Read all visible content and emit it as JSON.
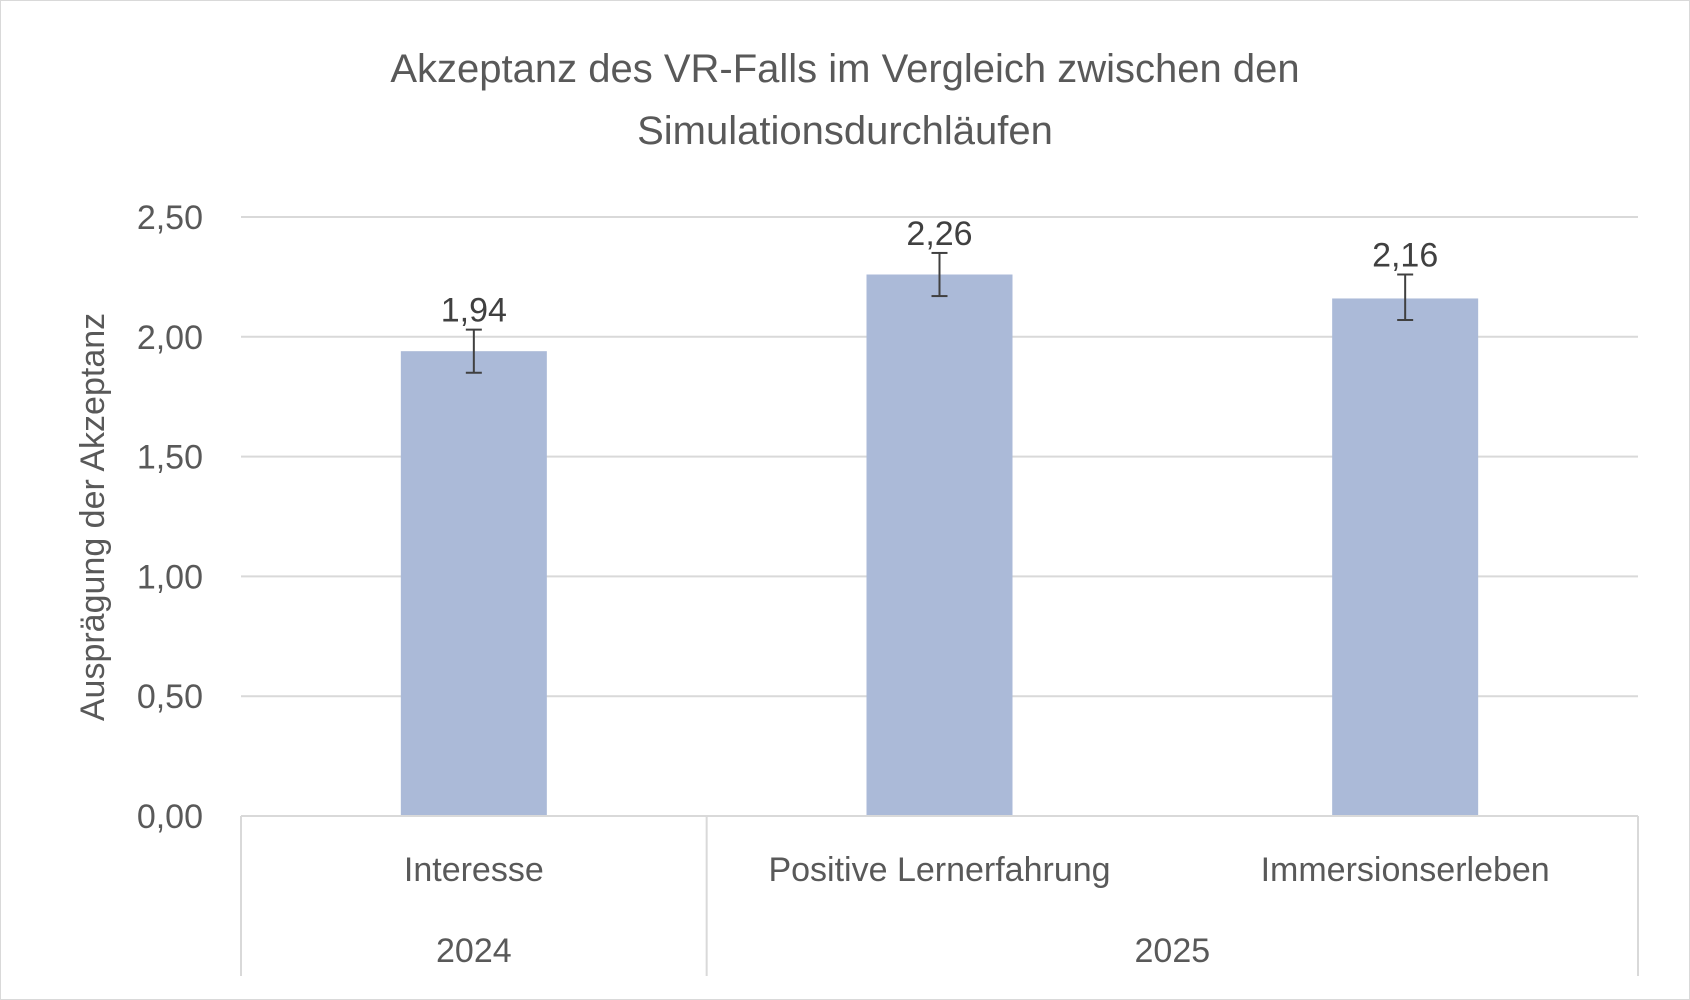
{
  "chart_data": {
    "type": "bar",
    "title_line1": "Akzeptanz des VR-Falls im Vergleich zwischen den",
    "title_line2": "Simulationsdurchläufen",
    "ylabel": "Ausprägung der Akzeptanz",
    "xlabel": "",
    "ylim": [
      0,
      2.5
    ],
    "yticks": [
      {
        "value": 0,
        "label": "0,00"
      },
      {
        "value": 0.5,
        "label": "0,50"
      },
      {
        "value": 1,
        "label": "1,00"
      },
      {
        "value": 1.5,
        "label": "1,50"
      },
      {
        "value": 2,
        "label": "2,00"
      },
      {
        "value": 2.5,
        "label": "2,50"
      }
    ],
    "grid": true,
    "legend": "none",
    "bars": [
      {
        "category": "Interesse",
        "value": 1.94,
        "label": "1,94",
        "error_low": 1.85,
        "error_high": 2.03
      },
      {
        "category": "Positive Lernerfahrung",
        "value": 2.26,
        "label": "2,26",
        "error_low": 2.17,
        "error_high": 2.35
      },
      {
        "category": "Immersionserleben",
        "value": 2.16,
        "label": "2,16",
        "error_low": 2.07,
        "error_high": 2.26
      }
    ],
    "groups": [
      {
        "label": "2024",
        "count": 1
      },
      {
        "label": "2025",
        "count": 2
      }
    ],
    "colors": {
      "bar": "#abbad8",
      "grid": "#d9d9d9",
      "text": "#595959",
      "data_label": "#404040",
      "error_bar": "#404040"
    }
  }
}
